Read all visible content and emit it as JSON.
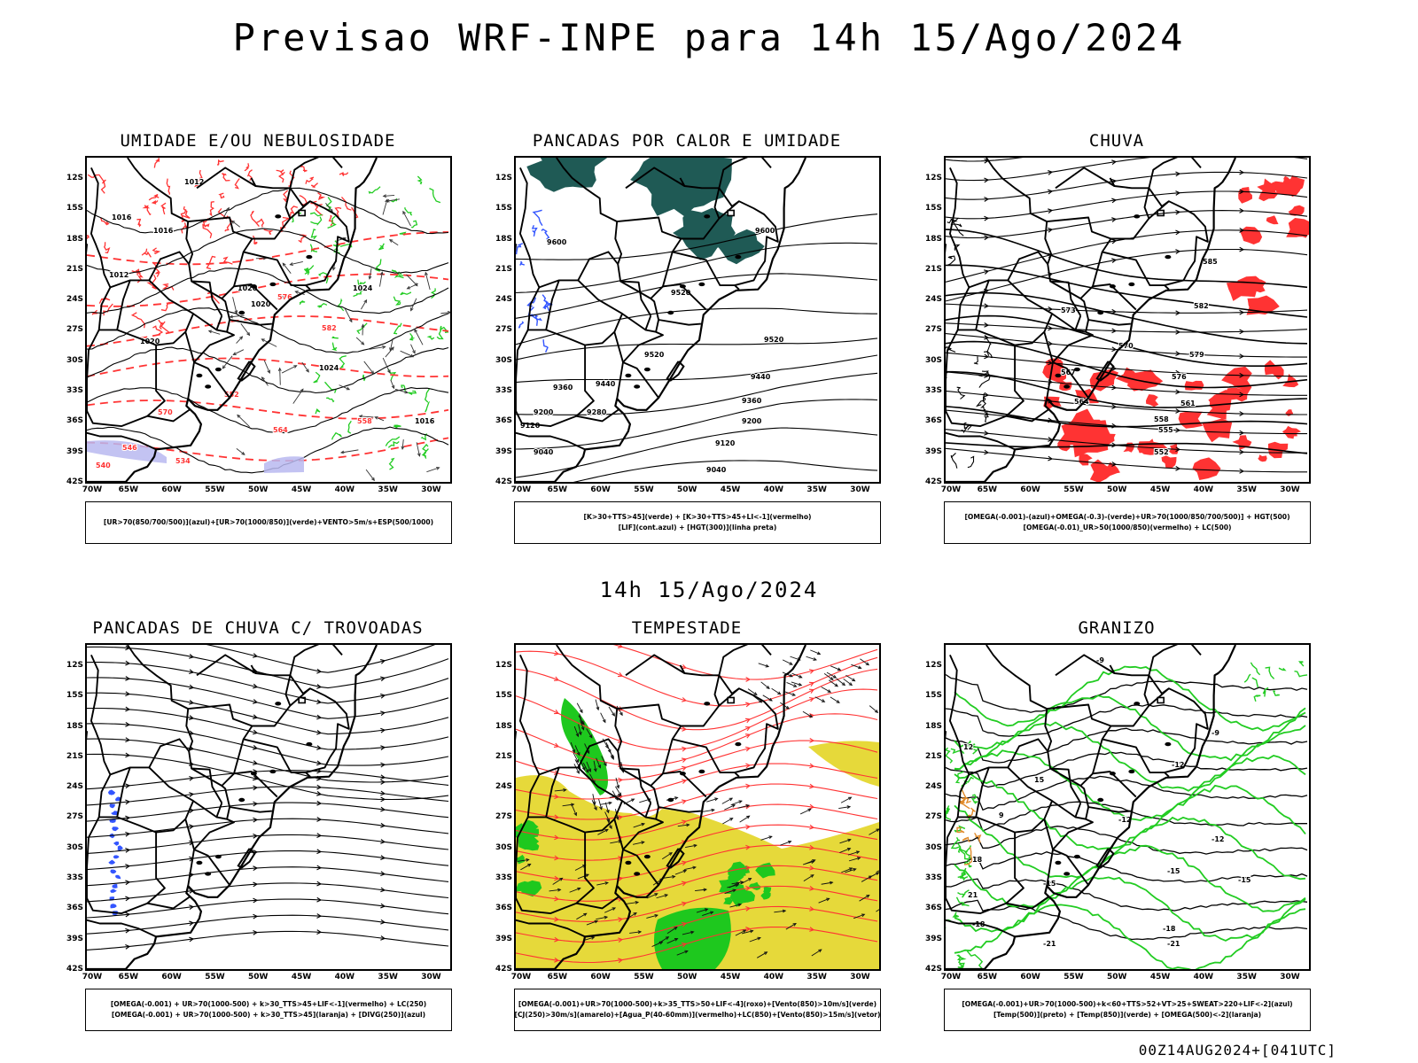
{
  "title": "Previsao WRF-INPE  para 14h 15/Ago/2024",
  "mid_date": "14h 15/Ago/2024",
  "footer": "00Z14AUG2024+[041UTC]",
  "lat_labels": [
    "12S",
    "15S",
    "18S",
    "21S",
    "24S",
    "27S",
    "30S",
    "33S",
    "36S",
    "39S",
    "42S"
  ],
  "lon_labels": [
    "70W",
    "65W",
    "60W",
    "55W",
    "50W",
    "45W",
    "40W",
    "35W",
    "30W"
  ],
  "colors": {
    "green": "#22cc22",
    "red": "#ff3333",
    "blue": "#3355ff",
    "yellow": "#e6d93a",
    "teal": "#1f5a55",
    "lavender": "#b8b8f0",
    "orange": "#e08a2a"
  },
  "panels": [
    {
      "id": "umidade",
      "title": "UMIDADE E/OU NEBULOSIDADE",
      "legend": [
        "[UR>70(850/700/500)](azul)+[UR>70(1000/850)](verde)+VENTO>5m/s+ESP(500/1000)"
      ],
      "labels": [
        "1012",
        "1016",
        "1016",
        "1020",
        "1020",
        "1024",
        "1024",
        "1016",
        "1012",
        "1020",
        "570",
        "576",
        "582",
        "558",
        "564",
        "552",
        "546",
        "540",
        "534"
      ]
    },
    {
      "id": "pancadas-calor",
      "title": "PANCADAS POR CALOR E UMIDADE",
      "legend": [
        "[K>30+TTS>45](verde) + [K>30+TTS>45+LI<-1](vermelho)",
        "[LIF](cont.azul) + [HGT(300)](linha preta)"
      ],
      "labels": [
        "9600",
        "9600",
        "9520",
        "9520",
        "9520",
        "9440",
        "9440",
        "9360",
        "9360",
        "9280",
        "9200",
        "9200",
        "9120",
        "9120",
        "9040",
        "9040"
      ]
    },
    {
      "id": "chuva",
      "title": "CHUVA",
      "legend": [
        "[OMEGA(-0.001)-(azul)+OMEGA(-0.3)-(verde)+UR>70(1000/850/700/500)] + HGT(500)",
        "[OMEGA(-0.01)_UR>50(1000/850)(vermelho) + LC(500)"
      ],
      "labels": [
        "585",
        "582",
        "579",
        "576",
        "573",
        "570",
        "567",
        "564",
        "561",
        "558",
        "555",
        "552"
      ]
    },
    {
      "id": "pancadas-trovoadas",
      "title": "PANCADAS DE CHUVA C/ TROVOADAS",
      "legend": [
        "[OMEGA(-0.001) + UR>70(1000-500) + k>30_TTS>45+LIF<-1](vermelho) + LC(250)",
        "[OMEGA(-0.001) + UR>70(1000-500) + k>30_TTS>45](laranja) + [DIVG(250)](azul)"
      ],
      "labels": []
    },
    {
      "id": "tempestade",
      "title": "TEMPESTADE",
      "legend": [
        "[OMEGA(-0.001)+UR>70(1000-500)+k>35_TTS>50+LIF<-4](roxo)+[Vento(850)>10m/s](verde)",
        "[CJ(250)>30m/s](amarelo)+[Agua_P(40-60mm)](vermelho)+LC(850)+[Vento(850)>15m/s](vetor)"
      ],
      "labels": []
    },
    {
      "id": "granizo",
      "title": "GRANIZO",
      "legend": [
        "[OMEGA(-0.001)+UR>70(1000-500)+k<60+TTS>52+VT>25+SWEAT>220+LIF<-2](azul)",
        "[Temp(500)](preto) + [Temp(850)](verde) + [OMEGA(500)<-2](laranja)"
      ],
      "labels": [
        "-9",
        "-9",
        "-12",
        "-12",
        "-12",
        "-15",
        "-15",
        "-15",
        "-18",
        "-18",
        "-21",
        "-21",
        "9",
        "12",
        "15",
        "18",
        "21"
      ]
    }
  ]
}
